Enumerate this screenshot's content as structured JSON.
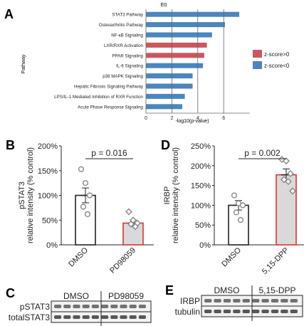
{
  "panels": {
    "A": {
      "letter": "A"
    },
    "B": {
      "letter": "B"
    },
    "C": {
      "letter": "C"
    },
    "D": {
      "letter": "D"
    },
    "E": {
      "letter": "E"
    }
  },
  "chart_data": [
    {
      "id": "A",
      "type": "bar",
      "orientation": "horizontal",
      "top_label": "E0",
      "xlabel": "-log10(p-value)",
      "ylabel": "Pathway",
      "xlim": [
        0,
        8
      ],
      "xticks": [
        0,
        2,
        4,
        6
      ],
      "reference_lines": [
        2,
        4,
        6
      ],
      "categories": [
        "STAT3 Pathway",
        "Osteoarthritis Pathway",
        "NF-κB Signaling",
        "LXR/RXR Activation",
        "PPAR Signaling",
        "IL-6 Signaling",
        "p38 MAPK Signaling",
        "Hepatic Fibrosis Signaling Pathway",
        "LPS/IL-1 Mediated Inhibition of RXR Function",
        "Acute Phase Response Signaling"
      ],
      "values": [
        7.2,
        6.1,
        5.1,
        4.7,
        4.5,
        4.4,
        3.6,
        3.6,
        3.0,
        2.8
      ],
      "groups": [
        "neg",
        "neg",
        "neg",
        "pos",
        "pos",
        "neg",
        "neg",
        "neg",
        "neg",
        "neg"
      ],
      "legend": [
        {
          "key": "pos",
          "label": "z-score>0",
          "color": "#cd5560"
        },
        {
          "key": "neg",
          "label": "z-score<0",
          "color": "#4a86bf"
        }
      ],
      "legend_position": "right"
    },
    {
      "id": "B",
      "type": "bar",
      "categories": [
        "DMSO",
        "PD98059"
      ],
      "values": [
        100,
        44
      ],
      "errors": [
        15,
        6
      ],
      "points": [
        [
          153,
          125,
          100,
          77,
          62
        ],
        [
          67,
          50,
          44,
          42,
          37
        ]
      ],
      "point_markers": [
        "circle",
        "diamond"
      ],
      "bar_edge_colors": [
        "#222222",
        "#e0312f"
      ],
      "bar_fill_colors": [
        "#ffffff",
        "#d9d9d9"
      ],
      "ylim": [
        0,
        200
      ],
      "yticks": [
        "0%",
        "50%",
        "100%",
        "150%",
        "200%"
      ],
      "ylabel": "pSTAT3\nrelative intensity (% control)",
      "significance": "p = 0.016"
    },
    {
      "id": "D",
      "type": "bar",
      "categories": [
        "DMSO",
        "5,15-DPP"
      ],
      "values": [
        100,
        177
      ],
      "errors": [
        12,
        15
      ],
      "points": [
        [
          125,
          105,
          100,
          82,
          63
        ],
        [
          216,
          212,
          180,
          165,
          160,
          136
        ]
      ],
      "point_markers": [
        "circle",
        "diamond"
      ],
      "bar_edge_colors": [
        "#222222",
        "#e0312f"
      ],
      "bar_fill_colors": [
        "#ffffff",
        "#d9d9d9"
      ],
      "ylim": [
        0,
        250
      ],
      "yticks": [
        "0%",
        "50%",
        "100%",
        "150%",
        "200%",
        "250%"
      ],
      "ylabel": "IRBP\nrelative intensity (% control)",
      "significance": "p = 0.002"
    }
  ],
  "blots": {
    "C": {
      "groups": [
        "DMSO",
        "PD98059"
      ],
      "rows": [
        "pSTAT3",
        "totalSTAT3"
      ]
    },
    "E": {
      "groups": [
        "DMSO",
        "5,15-DPP"
      ],
      "rows": [
        "IRBP",
        "tubulin"
      ]
    }
  }
}
